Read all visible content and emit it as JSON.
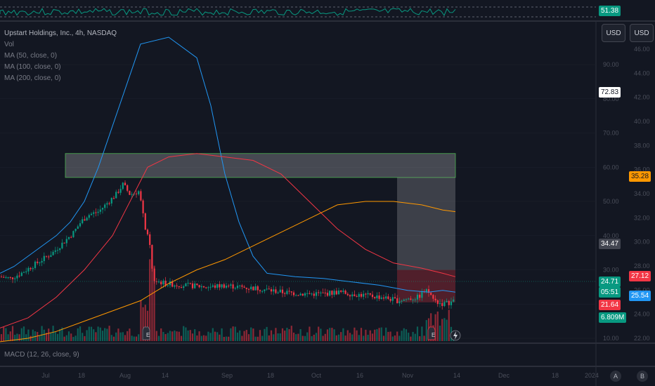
{
  "header": {
    "title": "Upstart Holdings, Inc., 4h, NASDAQ",
    "vol_label": "Vol",
    "ma_labels": [
      "MA (50, close, 0)",
      "MA (100, close, 0)",
      "MA (200, close, 0)"
    ]
  },
  "toolbar": {
    "currency_left": "USD",
    "currency_right": "USD"
  },
  "rsi": {
    "value": "51.38",
    "color": "#089981"
  },
  "macd_label": "MACD (12, 26, close, 9)",
  "bottom_buttons": {
    "a": "A",
    "b": "B"
  },
  "price_labels": {
    "target_top": "72.83",
    "ma200": "35.28",
    "stop_box": "34.47",
    "ma100": "27.12",
    "last_green": "24.71",
    "countdown": "05:51",
    "ma50": "25.54",
    "red_level": "21.64",
    "volume": "6.809M"
  },
  "colors": {
    "background": "#131722",
    "up": "#089981",
    "down": "#f23645",
    "ma50": "#2196f3",
    "ma100": "#f23645",
    "ma200": "#ff9800",
    "grid": "#1e222d"
  },
  "chart_data": {
    "type": "candlestick",
    "symbol": "Upstart Holdings, Inc., 4h, NASDAQ",
    "axis_left": {
      "ticks": [
        90.0,
        80.0,
        70.0,
        60.0,
        50.0,
        40.0,
        30.0,
        20.0,
        10.0
      ],
      "labels": [
        "90.00",
        "80.00",
        "70.00",
        "60.00",
        "50.00",
        "40.00",
        "30.00",
        "20.00",
        "10.00"
      ]
    },
    "axis_right": {
      "ticks": [
        46.0,
        44.0,
        42.0,
        40.0,
        38.0,
        36.0,
        34.0,
        32.0,
        30.0,
        28.0,
        26.0,
        24.0,
        22.0
      ],
      "labels": [
        "46.00",
        "44.00",
        "42.00",
        "40.00",
        "38.00",
        "36.00",
        "34.00",
        "32.00",
        "30.00",
        "28.00",
        "26.00",
        "24.00",
        "22.00"
      ]
    },
    "x_labels": [
      "Jul",
      "18",
      "Aug",
      "14",
      "Sep",
      "18",
      "Oct",
      "16",
      "Nov",
      "14",
      "Dec",
      "18",
      "2024"
    ],
    "price_path": [
      [
        0,
        28
      ],
      [
        15,
        27.5
      ],
      [
        30,
        29
      ],
      [
        45,
        31
      ],
      [
        60,
        33
      ],
      [
        75,
        35
      ],
      [
        90,
        38
      ],
      [
        105,
        41
      ],
      [
        115,
        44
      ],
      [
        125,
        46
      ],
      [
        140,
        47
      ],
      [
        155,
        50
      ],
      [
        165,
        52
      ],
      [
        175,
        55
      ],
      [
        185,
        52
      ],
      [
        198,
        53
      ],
      [
        205,
        44
      ],
      [
        213,
        37
      ],
      [
        218,
        27
      ],
      [
        235,
        26
      ],
      [
        260,
        25.5
      ],
      [
        300,
        25
      ],
      [
        320,
        25.5
      ],
      [
        340,
        25
      ],
      [
        370,
        24.5
      ],
      [
        400,
        23.5
      ],
      [
        430,
        23
      ],
      [
        460,
        23
      ],
      [
        480,
        23.5
      ],
      [
        500,
        23
      ],
      [
        520,
        22.5
      ],
      [
        545,
        22
      ],
      [
        565,
        21
      ],
      [
        580,
        21.5
      ],
      [
        595,
        22
      ],
      [
        605,
        24
      ],
      [
        612,
        23
      ],
      [
        618,
        21
      ],
      [
        630,
        20
      ],
      [
        640,
        20.5
      ],
      [
        648,
        21
      ]
    ],
    "ma50": [
      [
        0,
        29
      ],
      [
        20,
        31
      ],
      [
        40,
        34
      ],
      [
        60,
        37
      ],
      [
        80,
        40
      ],
      [
        100,
        44
      ],
      [
        120,
        50
      ],
      [
        140,
        60
      ],
      [
        160,
        72
      ],
      [
        180,
        84
      ],
      [
        200,
        96
      ],
      [
        240,
        98
      ],
      [
        280,
        92
      ],
      [
        300,
        78
      ],
      [
        320,
        58
      ],
      [
        340,
        44
      ],
      [
        360,
        34
      ],
      [
        380,
        29
      ],
      [
        420,
        28
      ],
      [
        460,
        27.5
      ],
      [
        500,
        26.5
      ],
      [
        540,
        25.5
      ],
      [
        580,
        24
      ],
      [
        610,
        23.5
      ],
      [
        630,
        24
      ],
      [
        648,
        23.5
      ]
    ],
    "ma100": [
      [
        0,
        13
      ],
      [
        40,
        16
      ],
      [
        80,
        22
      ],
      [
        120,
        30
      ],
      [
        160,
        40
      ],
      [
        190,
        52
      ],
      [
        210,
        60
      ],
      [
        240,
        63
      ],
      [
        280,
        64
      ],
      [
        320,
        63
      ],
      [
        360,
        62
      ],
      [
        400,
        58
      ],
      [
        440,
        50
      ],
      [
        480,
        42
      ],
      [
        520,
        36
      ],
      [
        560,
        32
      ],
      [
        600,
        30.5
      ],
      [
        630,
        29
      ],
      [
        648,
        28
      ]
    ],
    "ma200": [
      [
        0,
        9
      ],
      [
        40,
        10
      ],
      [
        80,
        12
      ],
      [
        120,
        15
      ],
      [
        160,
        18
      ],
      [
        200,
        21
      ],
      [
        240,
        26
      ],
      [
        280,
        30
      ],
      [
        320,
        33
      ],
      [
        360,
        37
      ],
      [
        400,
        41
      ],
      [
        440,
        45
      ],
      [
        480,
        49
      ],
      [
        520,
        50
      ],
      [
        560,
        50
      ],
      [
        600,
        49
      ],
      [
        630,
        47.5
      ],
      [
        648,
        47
      ]
    ],
    "zones": [
      {
        "name": "target-zone",
        "from_x": 93,
        "to_x": 648,
        "top": 64,
        "bottom": 57
      },
      {
        "name": "range-zone",
        "from_x": 565,
        "to_x": 648,
        "top": 57,
        "bottom": 30
      },
      {
        "name": "stop-zone",
        "from_x": 565,
        "to_x": 648,
        "top": 30,
        "bottom": 20.5
      }
    ],
    "earnings_markers": [
      "E",
      "E"
    ],
    "volume_note": "6.809M"
  }
}
